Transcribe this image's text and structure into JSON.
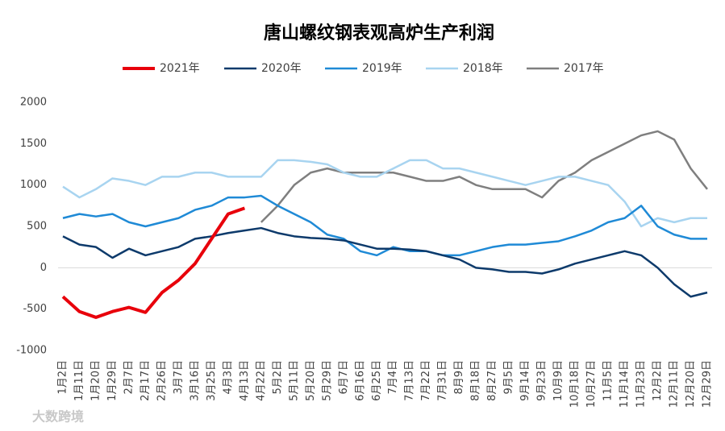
{
  "chart_data": {
    "type": "line",
    "title": "唐山螺纹钢表观高炉生产利润",
    "watermark": "大数跨境",
    "categories": [
      "1月2日",
      "1月11日",
      "1月20日",
      "1月29日",
      "2月7日",
      "2月17日",
      "2月26日",
      "3月7日",
      "3月16日",
      "3月25日",
      "4月3日",
      "4月13日",
      "4月22日",
      "5月2日",
      "5月11日",
      "5月20日",
      "5月29日",
      "6月7日",
      "6月16日",
      "6月25日",
      "7月4日",
      "7月13日",
      "7月22日",
      "7月31日",
      "8月9日",
      "8月18日",
      "8月27日",
      "9月5日",
      "9月14日",
      "9月23日",
      "10月9日",
      "10月18日",
      "10月27日",
      "11月5日",
      "11月14日",
      "11月23日",
      "12月2日",
      "12月11日",
      "12月20日",
      "12月29日"
    ],
    "series": [
      {
        "name": "2021年",
        "color": "#e8000b",
        "values": [
          -350,
          -530,
          -600,
          -530,
          -480,
          -540,
          -300,
          -150,
          50,
          350,
          650,
          720,
          null,
          null,
          null,
          null,
          null,
          null,
          null,
          null,
          null,
          null,
          null,
          null,
          null,
          null,
          null,
          null,
          null,
          null,
          null,
          null,
          null,
          null,
          null,
          null,
          null,
          null,
          null,
          null
        ]
      },
      {
        "name": "2020年",
        "color": "#0d3a6b",
        "values": [
          380,
          280,
          250,
          120,
          230,
          150,
          200,
          250,
          350,
          380,
          420,
          450,
          480,
          420,
          380,
          360,
          350,
          330,
          280,
          230,
          230,
          220,
          200,
          150,
          100,
          0,
          -20,
          -50,
          -50,
          -70,
          -20,
          50,
          100,
          150,
          200,
          150,
          0,
          -200,
          -350,
          -300
        ]
      },
      {
        "name": "2019年",
        "color": "#1f8ad6",
        "values": [
          600,
          650,
          620,
          650,
          550,
          500,
          550,
          600,
          700,
          750,
          850,
          850,
          870,
          750,
          650,
          550,
          400,
          350,
          200,
          150,
          250,
          200,
          200,
          150,
          150,
          200,
          250,
          280,
          280,
          300,
          320,
          380,
          450,
          550,
          600,
          750,
          500,
          400,
          350,
          350
        ]
      },
      {
        "name": "2018年",
        "color": "#a8d4f0",
        "values": [
          980,
          850,
          950,
          1080,
          1050,
          1000,
          1100,
          1100,
          1150,
          1150,
          1100,
          1100,
          1100,
          1300,
          1300,
          1280,
          1250,
          1150,
          1100,
          1100,
          1200,
          1300,
          1300,
          1200,
          1200,
          1150,
          1100,
          1050,
          1000,
          1050,
          1100,
          1100,
          1050,
          1000,
          800,
          500,
          600,
          550,
          600,
          600
        ]
      },
      {
        "name": "2017年",
        "color": "#7f7f7f",
        "values": [
          null,
          null,
          null,
          null,
          null,
          null,
          null,
          null,
          null,
          null,
          null,
          null,
          550,
          750,
          1000,
          1150,
          1200,
          1150,
          1150,
          1150,
          1150,
          1100,
          1050,
          1050,
          1100,
          1000,
          950,
          950,
          950,
          850,
          1050,
          1150,
          1300,
          1400,
          1500,
          1600,
          1650,
          1550,
          1200,
          950
        ]
      }
    ],
    "ylim": [
      -1000,
      2000
    ],
    "yticks": [
      -1000,
      -500,
      0,
      500,
      1000,
      1500,
      2000
    ],
    "grid": false
  }
}
